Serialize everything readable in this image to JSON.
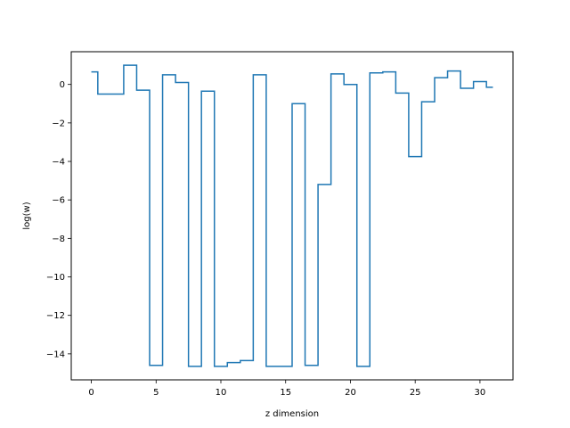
{
  "chart_data": {
    "type": "line",
    "subtype": "step",
    "title": "",
    "xlabel": "z dimension",
    "ylabel": "log(w)",
    "xlim": [
      -1.55,
      32.55
    ],
    "ylim": [
      -15.35,
      1.7
    ],
    "xticks": [
      0,
      5,
      10,
      15,
      20,
      25,
      30
    ],
    "xtick_labels": [
      "0",
      "5",
      "10",
      "15",
      "20",
      "25",
      "30"
    ],
    "yticks": [
      -14,
      -12,
      -10,
      -8,
      -6,
      -4,
      -2,
      0
    ],
    "ytick_labels": [
      "−14",
      "−12",
      "−10",
      "−8",
      "−6",
      "−4",
      "−2",
      "0"
    ],
    "grid": false,
    "line_color": "#1f77b4",
    "step_where": "mid",
    "series": [
      {
        "x": [
          0,
          1,
          2,
          3,
          4,
          5,
          6,
          7,
          8,
          9,
          10,
          11,
          12,
          13,
          14,
          15,
          16,
          17,
          18,
          19,
          20,
          21,
          22,
          23,
          24,
          25,
          26,
          27,
          28,
          29,
          30,
          31
        ],
        "y": [
          0.65,
          -0.5,
          -0.5,
          1.0,
          -0.3,
          -14.6,
          0.5,
          0.1,
          -14.65,
          -0.35,
          -14.65,
          -14.45,
          -14.35,
          0.5,
          -14.65,
          -14.65,
          -1.0,
          -14.6,
          -5.2,
          0.55,
          0.0,
          -14.65,
          0.6,
          0.65,
          -0.45,
          -3.75,
          -0.9,
          0.35,
          0.7,
          -0.2,
          0.15,
          -0.15
        ]
      }
    ]
  }
}
